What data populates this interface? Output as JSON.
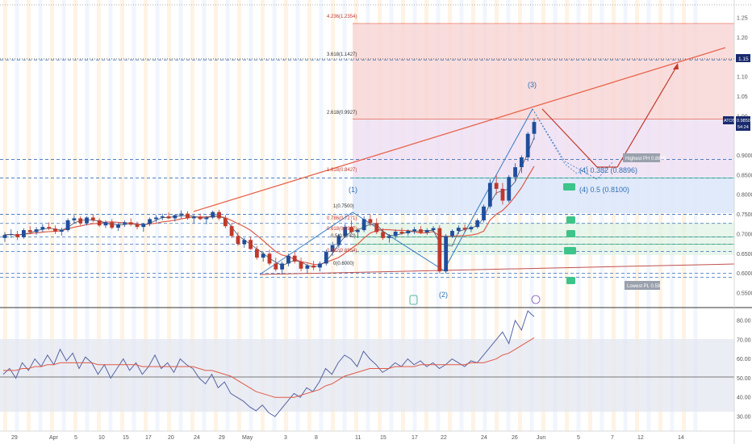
{
  "chart_data": {
    "type": "candlestick",
    "title": "",
    "ticker": "ATOS",
    "last_price": "0.9850",
    "countdown": "54:24",
    "price_axis": {
      "range": [
        0.545,
        1.3
      ],
      "ticks": [
        "1.25",
        "1.20",
        "1.15",
        "1.10",
        "1.05",
        "1.00",
        "0.9850",
        "0.9000",
        "0.8500",
        "0.8000",
        "0.7500",
        "0.7000",
        "0.6500",
        "0.6000",
        "0.5500"
      ]
    },
    "highlight_level": {
      "label": "1.15",
      "value": 1.15
    },
    "x_axis": {
      "labels": [
        "29",
        "Apr",
        "5",
        "10",
        "15",
        "17",
        "20",
        "24",
        "29",
        "May",
        "3",
        "8",
        "11",
        "15",
        "17",
        "22",
        "24",
        "26",
        "Jun",
        "5",
        "7",
        "12",
        "14"
      ]
    },
    "fib_retracement": [
      {
        "label": "1(0.7500)",
        "value": 0.75
      },
      {
        "label": "0.786(0.7271)",
        "value": 0.7271
      },
      {
        "label": "0.618(0.6927)",
        "value": 0.6927
      },
      {
        "label": "0.5(0.6740)",
        "value": 0.674
      },
      {
        "label": "0.382(0.6554)",
        "value": 0.6554
      },
      {
        "label": "0(0.6000)",
        "value": 0.6
      }
    ],
    "fib_extension": [
      {
        "label": "4.236(1.2354)",
        "value": 1.2354
      },
      {
        "label": "3.618(1.1427)",
        "value": 1.1427
      },
      {
        "label": "2.618(0.9927)",
        "value": 0.9927
      },
      {
        "label": "1.618(0.8427)",
        "value": 0.8427
      }
    ],
    "wave_labels": [
      "(1)",
      "(2)",
      "(3)",
      "(4) 0.382 (0.8896)",
      "(4) 0.5 (0.8100)"
    ],
    "annotations": [
      "Highest PH 0.8865",
      "Lowest PL 0.5901"
    ],
    "oscillator": {
      "range": [
        30,
        80
      ],
      "ticks": [
        "80.00",
        "70.00",
        "60.00",
        "50.00",
        "40.00",
        "30.00"
      ],
      "midline": 50,
      "upper": 70,
      "lower": 30
    },
    "candles": [
      [
        0.69,
        0.705,
        0.68,
        0.698
      ],
      [
        0.698,
        0.712,
        0.69,
        0.7
      ],
      [
        0.7,
        0.708,
        0.685,
        0.692
      ],
      [
        0.692,
        0.715,
        0.688,
        0.71
      ],
      [
        0.71,
        0.72,
        0.7,
        0.705
      ],
      [
        0.705,
        0.718,
        0.698,
        0.712
      ],
      [
        0.712,
        0.725,
        0.705,
        0.718
      ],
      [
        0.718,
        0.73,
        0.71,
        0.714
      ],
      [
        0.714,
        0.722,
        0.7,
        0.706
      ],
      [
        0.706,
        0.716,
        0.696,
        0.71
      ],
      [
        0.71,
        0.74,
        0.705,
        0.735
      ],
      [
        0.735,
        0.748,
        0.728,
        0.74
      ],
      [
        0.74,
        0.745,
        0.722,
        0.728
      ],
      [
        0.728,
        0.745,
        0.722,
        0.742
      ],
      [
        0.742,
        0.75,
        0.73,
        0.735
      ],
      [
        0.735,
        0.74,
        0.718,
        0.722
      ],
      [
        0.722,
        0.735,
        0.715,
        0.73
      ],
      [
        0.73,
        0.738,
        0.712,
        0.716
      ],
      [
        0.716,
        0.728,
        0.708,
        0.725
      ],
      [
        0.725,
        0.735,
        0.718,
        0.73
      ],
      [
        0.73,
        0.74,
        0.72,
        0.724
      ],
      [
        0.724,
        0.732,
        0.712,
        0.718
      ],
      [
        0.718,
        0.728,
        0.706,
        0.726
      ],
      [
        0.726,
        0.742,
        0.72,
        0.738
      ],
      [
        0.738,
        0.748,
        0.73,
        0.742
      ],
      [
        0.742,
        0.752,
        0.735,
        0.745
      ],
      [
        0.745,
        0.755,
        0.738,
        0.74
      ],
      [
        0.74,
        0.75,
        0.732,
        0.748
      ],
      [
        0.748,
        0.76,
        0.74,
        0.752
      ],
      [
        0.752,
        0.758,
        0.736,
        0.74
      ],
      [
        0.74,
        0.748,
        0.728,
        0.744
      ],
      [
        0.744,
        0.752,
        0.735,
        0.738
      ],
      [
        0.738,
        0.746,
        0.725,
        0.742
      ],
      [
        0.742,
        0.76,
        0.738,
        0.756
      ],
      [
        0.756,
        0.762,
        0.735,
        0.74
      ],
      [
        0.74,
        0.748,
        0.715,
        0.72
      ],
      [
        0.72,
        0.728,
        0.69,
        0.695
      ],
      [
        0.695,
        0.705,
        0.67,
        0.675
      ],
      [
        0.675,
        0.69,
        0.665,
        0.685
      ],
      [
        0.685,
        0.692,
        0.66,
        0.662
      ],
      [
        0.662,
        0.67,
        0.635,
        0.64
      ],
      [
        0.64,
        0.655,
        0.63,
        0.65
      ],
      [
        0.65,
        0.66,
        0.62,
        0.625
      ],
      [
        0.625,
        0.64,
        0.605,
        0.61
      ],
      [
        0.61,
        0.63,
        0.598,
        0.625
      ],
      [
        0.625,
        0.65,
        0.618,
        0.645
      ],
      [
        0.645,
        0.655,
        0.625,
        0.63
      ],
      [
        0.63,
        0.64,
        0.605,
        0.612
      ],
      [
        0.612,
        0.625,
        0.6,
        0.62
      ],
      [
        0.62,
        0.632,
        0.608,
        0.615
      ],
      [
        0.615,
        0.63,
        0.605,
        0.625
      ],
      [
        0.625,
        0.66,
        0.62,
        0.655
      ],
      [
        0.655,
        0.68,
        0.645,
        0.672
      ],
      [
        0.672,
        0.7,
        0.665,
        0.695
      ],
      [
        0.695,
        0.725,
        0.69,
        0.718
      ],
      [
        0.718,
        0.735,
        0.7,
        0.705
      ],
      [
        0.705,
        0.715,
        0.69,
        0.71
      ],
      [
        0.71,
        0.745,
        0.705,
        0.738
      ],
      [
        0.738,
        0.75,
        0.72,
        0.728
      ],
      [
        0.728,
        0.74,
        0.7,
        0.705
      ],
      [
        0.705,
        0.715,
        0.685,
        0.69
      ],
      [
        0.69,
        0.7,
        0.678,
        0.695
      ],
      [
        0.695,
        0.712,
        0.688,
        0.706
      ],
      [
        0.706,
        0.716,
        0.698,
        0.702
      ],
      [
        0.702,
        0.712,
        0.696,
        0.708
      ],
      [
        0.708,
        0.718,
        0.7,
        0.712
      ],
      [
        0.712,
        0.72,
        0.7,
        0.704
      ],
      [
        0.704,
        0.715,
        0.698,
        0.71
      ],
      [
        0.71,
        0.72,
        0.704,
        0.715
      ],
      [
        0.715,
        0.722,
        0.6,
        0.605
      ],
      [
        0.605,
        0.7,
        0.6,
        0.695
      ],
      [
        0.695,
        0.712,
        0.69,
        0.708
      ],
      [
        0.708,
        0.722,
        0.7,
        0.716
      ],
      [
        0.716,
        0.724,
        0.706,
        0.712
      ],
      [
        0.712,
        0.722,
        0.705,
        0.718
      ],
      [
        0.718,
        0.74,
        0.714,
        0.735
      ],
      [
        0.735,
        0.775,
        0.73,
        0.77
      ],
      [
        0.77,
        0.84,
        0.765,
        0.83
      ],
      [
        0.83,
        0.85,
        0.8,
        0.815
      ],
      [
        0.815,
        0.83,
        0.775,
        0.785
      ],
      [
        0.785,
        0.85,
        0.78,
        0.845
      ],
      [
        0.845,
        0.88,
        0.835,
        0.87
      ],
      [
        0.87,
        0.9,
        0.855,
        0.895
      ],
      [
        0.895,
        0.96,
        0.885,
        0.955
      ],
      [
        0.955,
        0.995,
        0.94,
        0.985
      ]
    ],
    "oscillator_values": [
      52,
      55,
      50,
      58,
      54,
      60,
      56,
      62,
      57,
      65,
      59,
      63,
      55,
      61,
      58,
      52,
      57,
      50,
      55,
      60,
      54,
      58,
      52,
      56,
      62,
      55,
      58,
      53,
      60,
      57,
      55,
      50,
      47,
      52,
      45,
      48,
      42,
      40,
      38,
      35,
      33,
      36,
      32,
      30,
      34,
      38,
      42,
      40,
      45,
      43,
      48,
      55,
      52,
      58,
      62,
      60,
      56,
      64,
      60,
      57,
      53,
      55,
      58,
      56,
      60,
      57,
      59,
      56,
      58,
      55,
      57,
      60,
      58,
      56,
      59,
      58,
      62,
      66,
      70,
      74,
      68,
      80,
      75,
      85,
      82
    ],
    "oscillator_ma": [
      54,
      54,
      54,
      55,
      55,
      56,
      56,
      57,
      57,
      58,
      58,
      58,
      58,
      58,
      58,
      57,
      57,
      57,
      57,
      57,
      57,
      57,
      56,
      56,
      56,
      56,
      56,
      56,
      56,
      56,
      56,
      55,
      54,
      54,
      53,
      52,
      51,
      49,
      47,
      45,
      43,
      42,
      41,
      40,
      40,
      40,
      40,
      41,
      42,
      43,
      44,
      46,
      47,
      49,
      51,
      52,
      53,
      54,
      55,
      55,
      55,
      55,
      56,
      56,
      56,
      56,
      57,
      57,
      57,
      57,
      57,
      57,
      57,
      57,
      58,
      58,
      58,
      59,
      60,
      62,
      63,
      65,
      67,
      69,
      71
    ]
  }
}
